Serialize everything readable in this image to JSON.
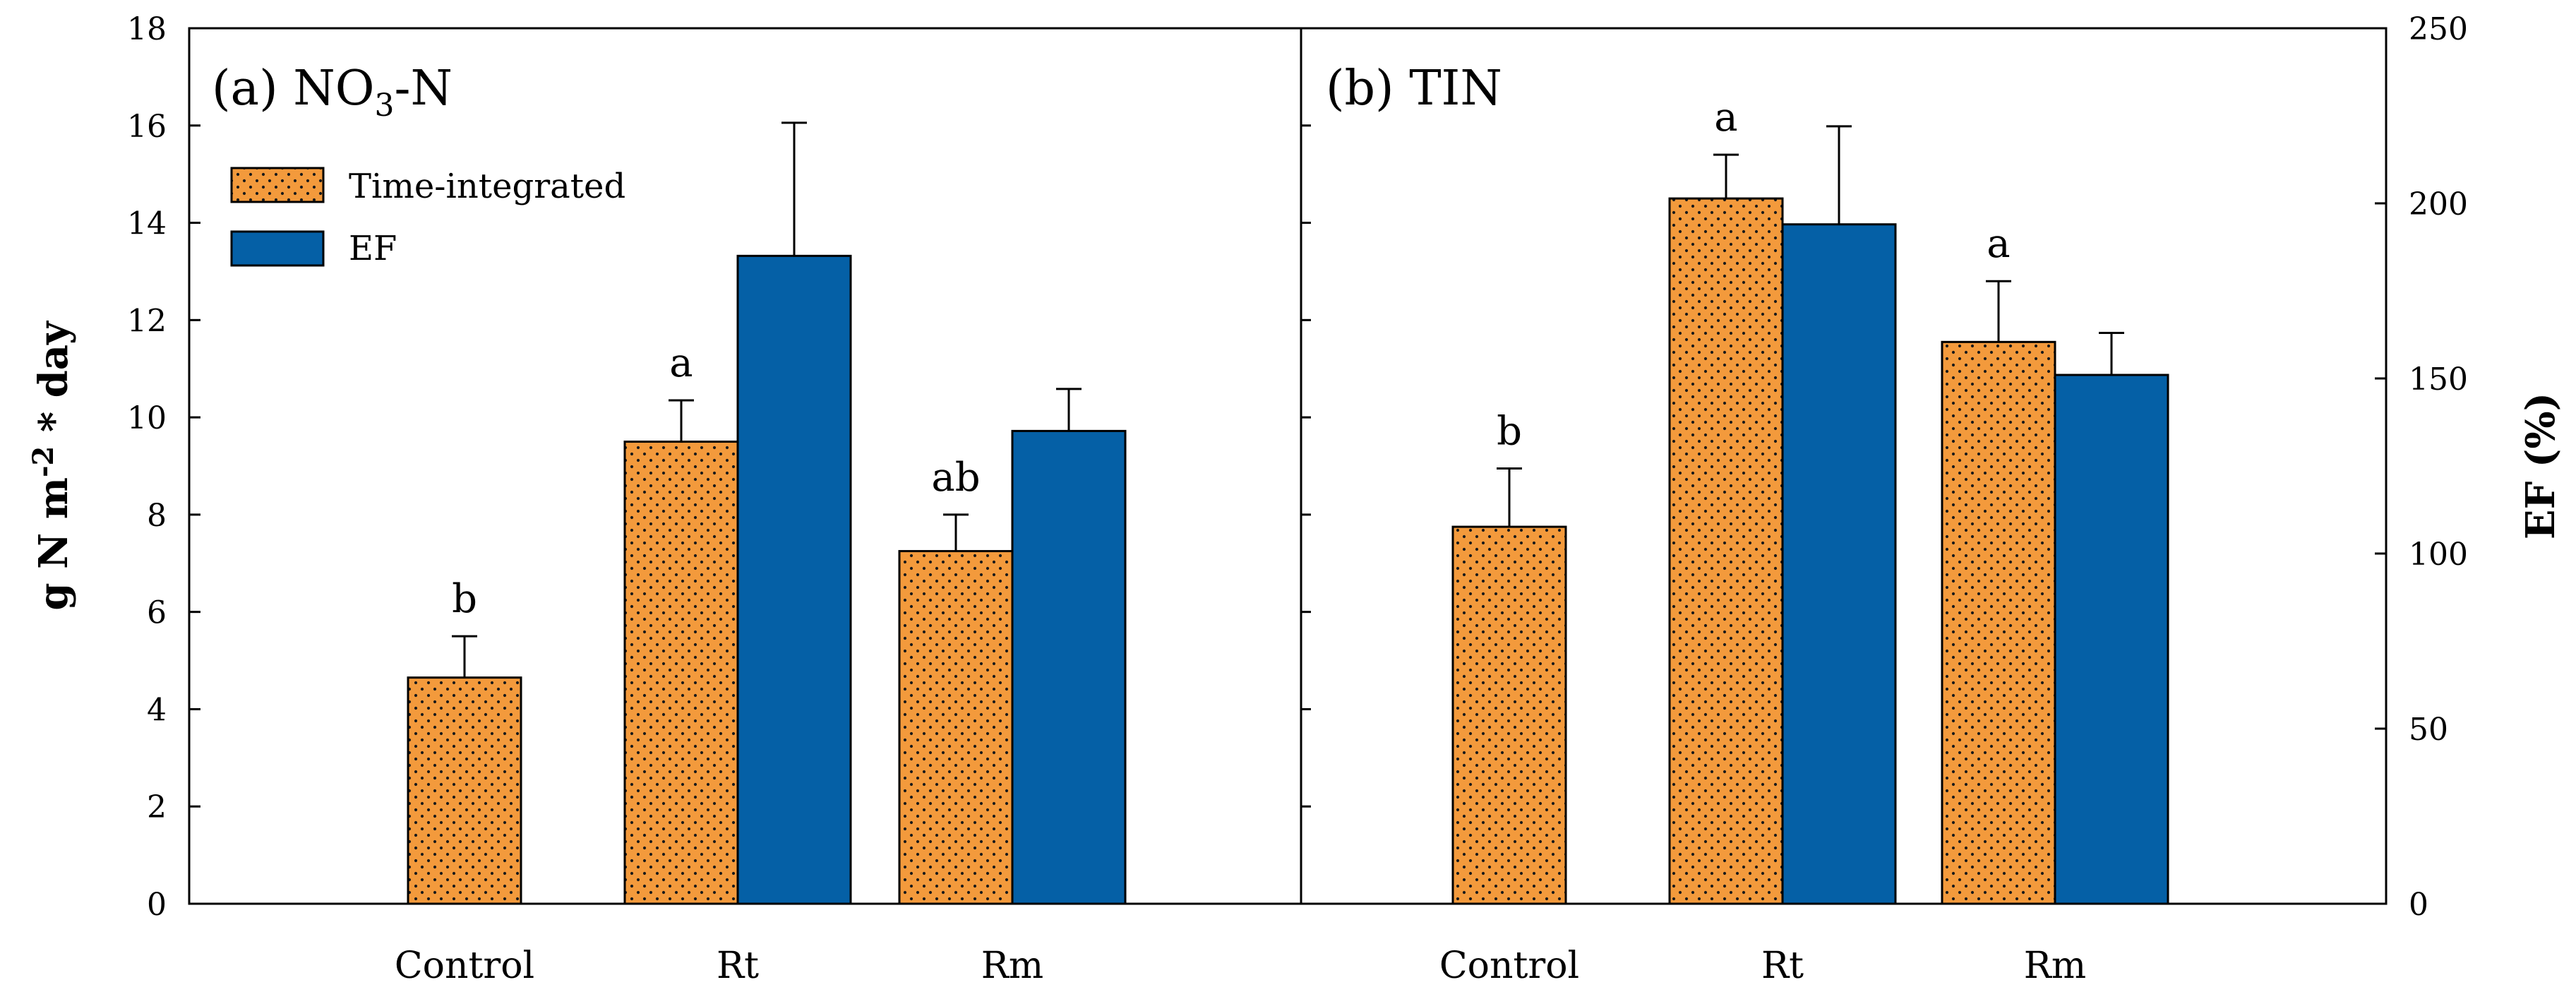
{
  "chart_data": {
    "type": "bar",
    "shared_y_axis": {
      "label_main": "g N m",
      "label_sup": "-2",
      "label_end": " * day",
      "ylim": [
        0,
        18
      ],
      "ticks": [
        "0",
        "2",
        "4",
        "6",
        "8",
        "10",
        "12",
        "14",
        "16",
        "18"
      ]
    },
    "secondary_y_axis": {
      "label": "EF (%)",
      "ylim": [
        0,
        250
      ],
      "ticks": [
        "0",
        "50",
        "100",
        "150",
        "200",
        "250"
      ]
    },
    "categories": [
      "Control",
      "Rt",
      "Rm"
    ],
    "legend": [
      {
        "name": "Time-integrated",
        "color": "#F39A3C",
        "pattern": "dotted"
      },
      {
        "name": "EF",
        "color": "#0560A6"
      }
    ],
    "panels": [
      {
        "title_prefix": "(a) NO",
        "title_sub": "3",
        "title_suffix": "-N",
        "series": [
          {
            "name": "Time-integrated",
            "axis": "left",
            "values": [
              4.65,
              9.5,
              7.25
            ],
            "errors": [
              0.85,
              0.85,
              0.75
            ],
            "letters": [
              "b",
              "a",
              "ab"
            ]
          },
          {
            "name": "EF",
            "axis": "right",
            "values": [
              null,
              185,
              135
            ],
            "errors": [
              null,
              38,
              12
            ]
          }
        ]
      },
      {
        "title_prefix": "(b) TIN",
        "title_sub": "",
        "title_suffix": "",
        "series": [
          {
            "name": "Time-integrated",
            "axis": "left",
            "values": [
              7.75,
              14.5,
              11.55
            ],
            "errors": [
              1.2,
              0.9,
              1.25
            ],
            "letters": [
              "b",
              "a",
              "a"
            ]
          },
          {
            "name": "EF",
            "axis": "right",
            "values": [
              null,
              194,
              151
            ],
            "errors": [
              null,
              28,
              12
            ]
          }
        ]
      }
    ]
  }
}
